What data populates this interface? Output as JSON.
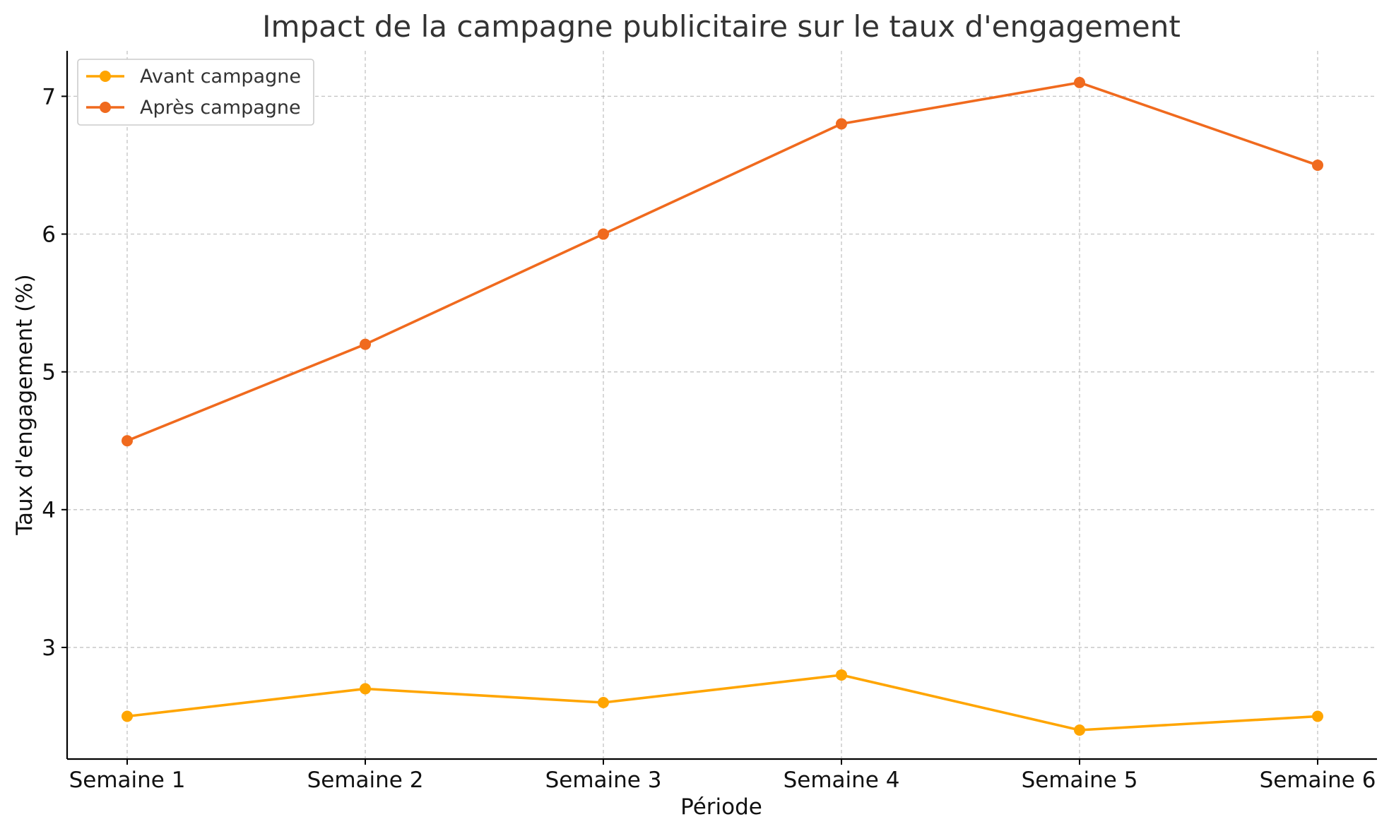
{
  "chart_data": {
    "type": "line",
    "title": "Impact de la campagne publicitaire sur le taux d'engagement",
    "xlabel": "Période",
    "ylabel": "Taux d'engagement (%)",
    "categories": [
      "Semaine 1",
      "Semaine 2",
      "Semaine 3",
      "Semaine 4",
      "Semaine 5",
      "Semaine 6"
    ],
    "series": [
      {
        "name": "Avant campagne",
        "color": "#FFA500",
        "values": [
          2.5,
          2.7,
          2.6,
          2.8,
          2.4,
          2.5
        ]
      },
      {
        "name": "Après campagne",
        "color": "#F06A1E",
        "values": [
          4.5,
          5.2,
          6.0,
          6.8,
          7.1,
          6.5
        ]
      }
    ],
    "ylim": [
      2.19,
      7.33
    ],
    "yticks": [
      3,
      4,
      5,
      6,
      7
    ],
    "grid": true,
    "legend_position": "top-left"
  }
}
